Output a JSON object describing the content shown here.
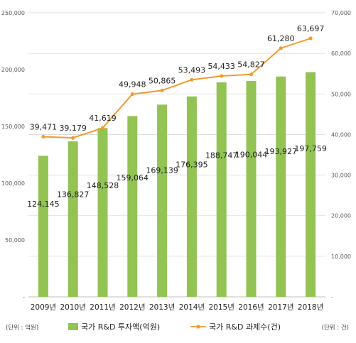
{
  "chart_data": {
    "type": "bar",
    "categories": [
      "2009년",
      "2010년",
      "2011년",
      "2012년",
      "2013년",
      "2014년",
      "2015년",
      "2016년",
      "2017년",
      "2018년"
    ],
    "series": [
      {
        "name": "국가 R&D 투자액(억원)",
        "type": "bar",
        "axis": "left",
        "color": "#92c353",
        "values": [
          124145,
          136827,
          148528,
          159064,
          169139,
          176395,
          188747,
          190044,
          193927,
          197759
        ],
        "labels": [
          "124,145",
          "136,827",
          "148,528",
          "159,064",
          "169,139",
          "176,395",
          "188,747",
          "190,044",
          "193,927",
          "197,759"
        ]
      },
      {
        "name": "국가 R&D 과제수(건)",
        "type": "line",
        "axis": "right",
        "color": "#f29a2e",
        "values": [
          39471,
          39179,
          41619,
          49948,
          50865,
          53493,
          54433,
          54827,
          61280,
          63697
        ],
        "labels": [
          "39,471",
          "39,179",
          "41,619",
          "49,948",
          "50,865",
          "53,493",
          "54,433",
          "54,827",
          "61,280",
          "63,697"
        ]
      }
    ],
    "y_left": {
      "ylim": [
        0,
        250000
      ],
      "ticks": [
        0,
        50000,
        100000,
        150000,
        200000,
        250000
      ],
      "tick_labels": [
        "-",
        "50,000",
        "100,000",
        "150,000",
        "200,000",
        "250,000"
      ],
      "unit_label": "(단위 : 억원)"
    },
    "y_right": {
      "ylim": [
        0,
        70000
      ],
      "ticks": [
        0,
        10000,
        20000,
        30000,
        40000,
        50000,
        60000,
        70000
      ],
      "tick_labels": [
        "-",
        "10,000",
        "20,000",
        "30,000",
        "40,000",
        "50,000",
        "60,000",
        "70,000"
      ],
      "unit_label": "(단위 : 건)"
    },
    "grid": true,
    "legend": "bottom"
  }
}
